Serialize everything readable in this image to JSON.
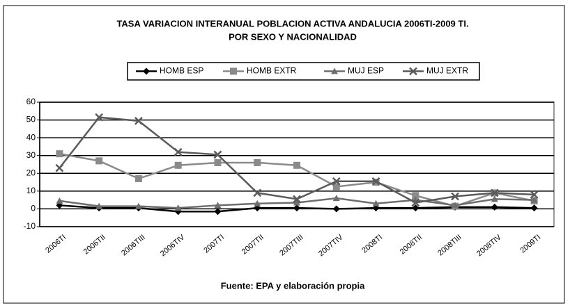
{
  "chart_data": {
    "type": "line",
    "title": "TASA VARIACION INTERANUAL POBLACION ACTIVA ANDALUCIA 2006TI-2009 TI.",
    "subtitle": "POR SEXO  Y NACIONALIDAD",
    "x_label": "Fuente: EPA y elaboración propia",
    "categories": [
      "2006TI",
      "2006TII",
      "2006TIII",
      "2006TIV",
      "2007TI",
      "2007TII",
      "2007TIII",
      "2007TIV",
      "2008TI",
      "2008TII",
      "2008TIII",
      "2008TIV",
      "2009TI"
    ],
    "series": [
      {
        "name": "HOMB ESP",
        "color": "#000000",
        "marker": "diamond",
        "values": [
          2,
          0.5,
          0.5,
          -1.5,
          -1.5,
          0.5,
          0.5,
          0,
          0.5,
          0.5,
          1,
          1,
          0.5
        ]
      },
      {
        "name": "HOMB EXTR",
        "color": "#8a8a8a",
        "marker": "square",
        "values": [
          31,
          27,
          17,
          24.5,
          26,
          26,
          24.5,
          12.5,
          15,
          7.5,
          1.5,
          9,
          4.5
        ]
      },
      {
        "name": "MUJ ESP",
        "color": "#6e6e6e",
        "marker": "triangle",
        "values": [
          4.5,
          1.5,
          1.5,
          0.5,
          2,
          3,
          3.5,
          6,
          3,
          5,
          2,
          5.5,
          5
        ]
      },
      {
        "name": "MUJ EXTR",
        "color": "#5a5a5a",
        "marker": "x",
        "values": [
          23,
          51.5,
          49.5,
          32,
          30.5,
          9,
          5.5,
          15.5,
          15.5,
          3.5,
          7,
          9,
          8
        ]
      }
    ],
    "ylim": [
      -10,
      60
    ],
    "yticks": [
      -10,
      0,
      10,
      20,
      30,
      40,
      50,
      60
    ],
    "grid": true
  }
}
